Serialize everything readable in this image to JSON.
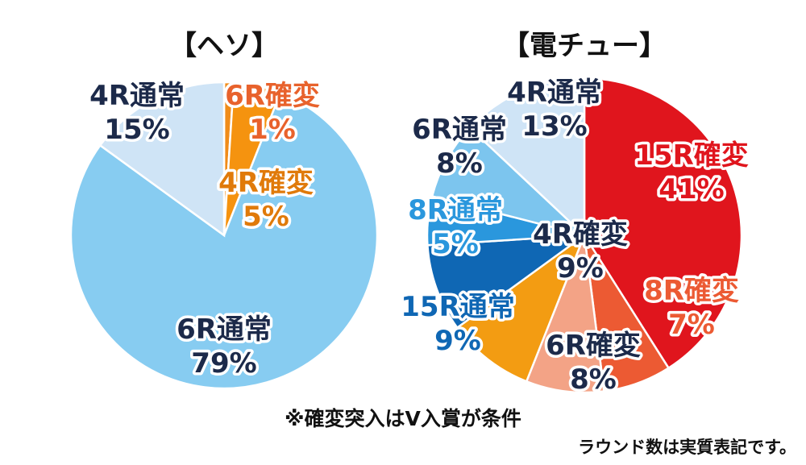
{
  "chart_data": [
    {
      "type": "pie",
      "title": "【ヘソ】",
      "slices": [
        {
          "name": "6R確変",
          "value": 1,
          "label": "1%",
          "color": "#f08c1a",
          "text_color": "#e8622c"
        },
        {
          "name": "4R確変",
          "value": 5,
          "label": "5%",
          "color": "#f5930f",
          "text_color": "#e07a0a"
        },
        {
          "name": "6R通常",
          "value": 79,
          "label": "79%",
          "color": "#87ccf1",
          "text_color": "#1c2a4a"
        },
        {
          "name": "4R通常",
          "value": 15,
          "label": "15%",
          "color": "#cfe4f6",
          "text_color": "#1c2a4a"
        }
      ]
    },
    {
      "type": "pie",
      "title": "【電チュー】",
      "slices": [
        {
          "name": "15R確変",
          "value": 41,
          "label": "41%",
          "color": "#e0151d",
          "text_color": "#e0151d"
        },
        {
          "name": "8R確変",
          "value": 7,
          "label": "7%",
          "color": "#ec5a33",
          "text_color": "#ec5a33"
        },
        {
          "name": "6R確変",
          "value": 8,
          "label": "8%",
          "color": "#f3a386",
          "text_color": "#1c2a4a"
        },
        {
          "name": "4R確変",
          "value": 9,
          "label": "9%",
          "color": "#f39c12",
          "text_color": "#1c2a4a"
        },
        {
          "name": "15R通常",
          "value": 9,
          "label": "9%",
          "color": "#0f67b4",
          "text_color": "#0f67b4"
        },
        {
          "name": "8R通常",
          "value": 5,
          "label": "5%",
          "color": "#2a97dd",
          "text_color": "#2a97dd"
        },
        {
          "name": "6R通常",
          "value": 8,
          "label": "8%",
          "color": "#7cc5ee",
          "text_color": "#1c2a4a"
        },
        {
          "name": "4R通常",
          "value": 13,
          "label": "13%",
          "color": "#cfe4f6",
          "text_color": "#1c2a4a"
        }
      ]
    }
  ],
  "notes": {
    "condition": "※確変突入はV入賞が条件",
    "round_note": "ラウンド数は実質表記です。"
  }
}
